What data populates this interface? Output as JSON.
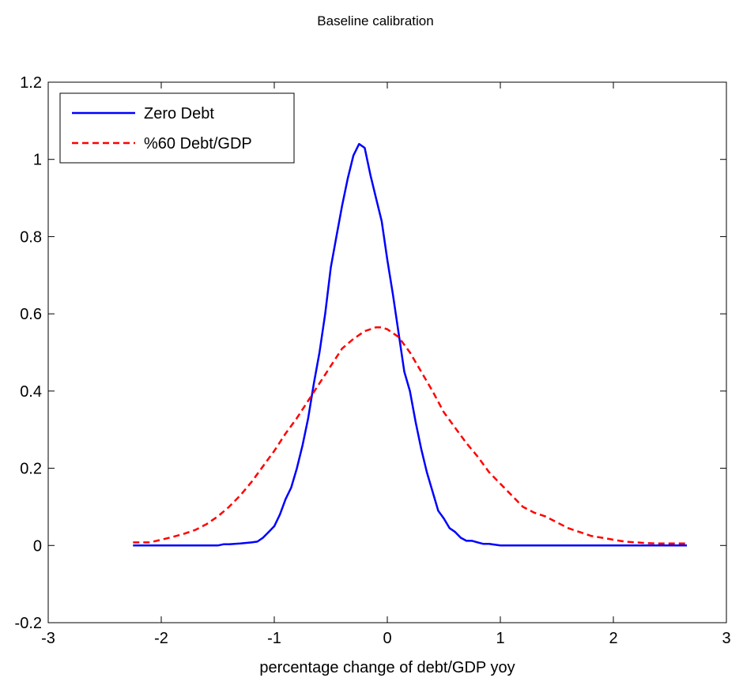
{
  "chart_data": {
    "type": "line",
    "title": "Baseline calibration",
    "xlabel": "percentage change of debt/GDP yoy",
    "ylabel": "",
    "xlim": [
      -3,
      3
    ],
    "ylim": [
      -0.2,
      1.2
    ],
    "xticks": [
      -3,
      -2,
      -1,
      0,
      1,
      2,
      3
    ],
    "yticks": [
      -0.2,
      0,
      0.2,
      0.4,
      0.6,
      0.8,
      1,
      1.2
    ],
    "xtick_labels": [
      "-3",
      "-2",
      "-1",
      "0",
      "1",
      "2",
      "3"
    ],
    "ytick_labels": [
      "-0.2",
      "0",
      "0.2",
      "0.4",
      "0.6",
      "0.8",
      "1",
      "1.2"
    ],
    "grid": false,
    "legend_position": "top-left",
    "series": [
      {
        "name": "Zero Debt",
        "color": "#0000ff",
        "style": "solid",
        "x": [
          -2.25,
          -2.0,
          -1.75,
          -1.5,
          -1.45,
          -1.4,
          -1.3,
          -1.2,
          -1.15,
          -1.1,
          -1.05,
          -1.0,
          -0.95,
          -0.9,
          -0.85,
          -0.8,
          -0.75,
          -0.7,
          -0.65,
          -0.6,
          -0.55,
          -0.5,
          -0.45,
          -0.4,
          -0.35,
          -0.3,
          -0.25,
          -0.2,
          -0.15,
          -0.1,
          -0.05,
          0.0,
          0.05,
          0.1,
          0.15,
          0.2,
          0.25,
          0.3,
          0.35,
          0.4,
          0.45,
          0.5,
          0.55,
          0.6,
          0.65,
          0.7,
          0.75,
          0.8,
          0.85,
          0.9,
          0.95,
          1.0,
          1.05,
          1.1,
          1.15,
          1.2,
          1.25,
          1.3,
          1.35,
          1.4,
          1.45,
          1.5,
          1.75,
          2.0,
          2.25,
          2.5,
          2.65
        ],
        "values": [
          0.0,
          0.0,
          0.0,
          0.0,
          0.003,
          0.003,
          0.005,
          0.008,
          0.01,
          0.02,
          0.035,
          0.05,
          0.08,
          0.12,
          0.15,
          0.2,
          0.26,
          0.33,
          0.42,
          0.5,
          0.6,
          0.72,
          0.8,
          0.88,
          0.95,
          1.01,
          1.04,
          1.03,
          0.96,
          0.9,
          0.84,
          0.74,
          0.65,
          0.55,
          0.45,
          0.4,
          0.32,
          0.25,
          0.19,
          0.14,
          0.09,
          0.07,
          0.045,
          0.035,
          0.02,
          0.012,
          0.012,
          0.008,
          0.004,
          0.004,
          0.002,
          0.0,
          0.0,
          0.0,
          0.0,
          0.0,
          0.0,
          0.0,
          0.0,
          0.0,
          0.0,
          0.0,
          0.0,
          0.0,
          0.0,
          0.0,
          0.0
        ]
      },
      {
        "name": "%60 Debt/GDP",
        "color": "#ff0000",
        "style": "dashed",
        "x": [
          -2.25,
          -2.1,
          -2.0,
          -1.9,
          -1.8,
          -1.7,
          -1.6,
          -1.5,
          -1.4,
          -1.3,
          -1.2,
          -1.1,
          -1.0,
          -0.9,
          -0.8,
          -0.7,
          -0.6,
          -0.5,
          -0.4,
          -0.3,
          -0.2,
          -0.1,
          -0.05,
          0.0,
          0.1,
          0.2,
          0.3,
          0.4,
          0.5,
          0.6,
          0.7,
          0.8,
          0.9,
          1.0,
          1.1,
          1.2,
          1.3,
          1.4,
          1.5,
          1.6,
          1.7,
          1.8,
          1.9,
          2.0,
          2.1,
          2.2,
          2.3,
          2.4,
          2.5,
          2.65
        ],
        "values": [
          0.008,
          0.008,
          0.015,
          0.022,
          0.03,
          0.04,
          0.055,
          0.075,
          0.1,
          0.13,
          0.165,
          0.205,
          0.245,
          0.29,
          0.33,
          0.375,
          0.42,
          0.465,
          0.51,
          0.535,
          0.555,
          0.565,
          0.565,
          0.56,
          0.54,
          0.5,
          0.45,
          0.4,
          0.345,
          0.305,
          0.265,
          0.23,
          0.19,
          0.16,
          0.13,
          0.1,
          0.085,
          0.075,
          0.06,
          0.045,
          0.035,
          0.025,
          0.02,
          0.015,
          0.01,
          0.008,
          0.006,
          0.005,
          0.005,
          0.005
        ]
      }
    ]
  }
}
